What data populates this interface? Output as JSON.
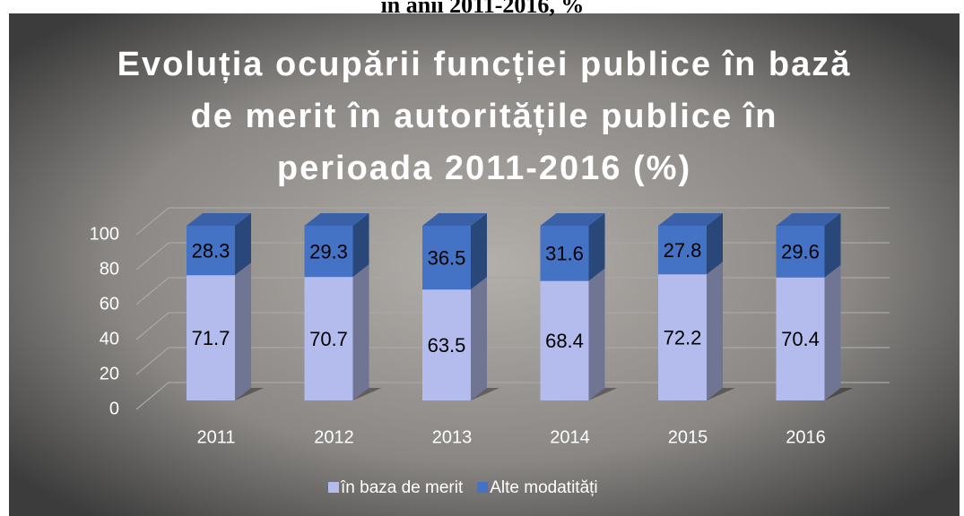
{
  "caption": "în anii 2011-2016, %",
  "chart_data": {
    "type": "bar3d_stacked",
    "title": [
      "Evoluția ocupării funcției publice în bază",
      "de merit în autoritățile publice în",
      "perioada 2011-2016 (%)"
    ],
    "categories": [
      "2011",
      "2012",
      "2013",
      "2014",
      "2015",
      "2016"
    ],
    "series": [
      {
        "name": "în baza de merit",
        "color": "#b3bcec",
        "values": [
          71.7,
          70.7,
          63.5,
          68.4,
          72.2,
          70.4
        ]
      },
      {
        "name": "Alte modatități",
        "color": "#4472c4",
        "values": [
          28.3,
          29.3,
          36.5,
          31.6,
          27.8,
          29.6
        ]
      }
    ],
    "ylim": [
      0,
      100
    ],
    "yticks": [
      0,
      20,
      40,
      60,
      80,
      100
    ],
    "grid": true,
    "legend": "bottom"
  }
}
